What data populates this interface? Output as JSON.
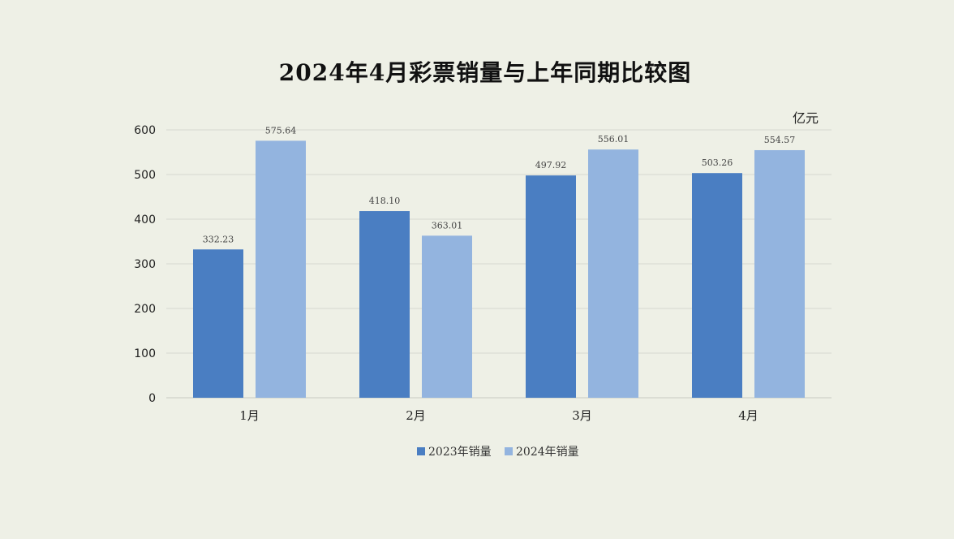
{
  "chart_data": {
    "type": "bar",
    "title": "2024年4月彩票销量与上年同期比较图",
    "unit": "亿元",
    "categories": [
      "1月",
      "2月",
      "3月",
      "4月"
    ],
    "series": [
      {
        "name": "2023年销量",
        "color": "#4a7ec2",
        "values": [
          332.23,
          418.1,
          497.92,
          503.26
        ],
        "labels": [
          "332.23",
          "418.10",
          "497.92",
          "503.26"
        ]
      },
      {
        "name": "2024年销量",
        "color": "#93b4df",
        "values": [
          575.64,
          363.01,
          556.01,
          554.57
        ],
        "labels": [
          "575.64",
          "363.01",
          "556.01",
          "554.57"
        ]
      }
    ],
    "ylim": [
      0,
      600
    ],
    "yticks": [
      "0",
      "100",
      "200",
      "300",
      "400",
      "500",
      "600"
    ],
    "grid": true,
    "legend": "bottom"
  }
}
